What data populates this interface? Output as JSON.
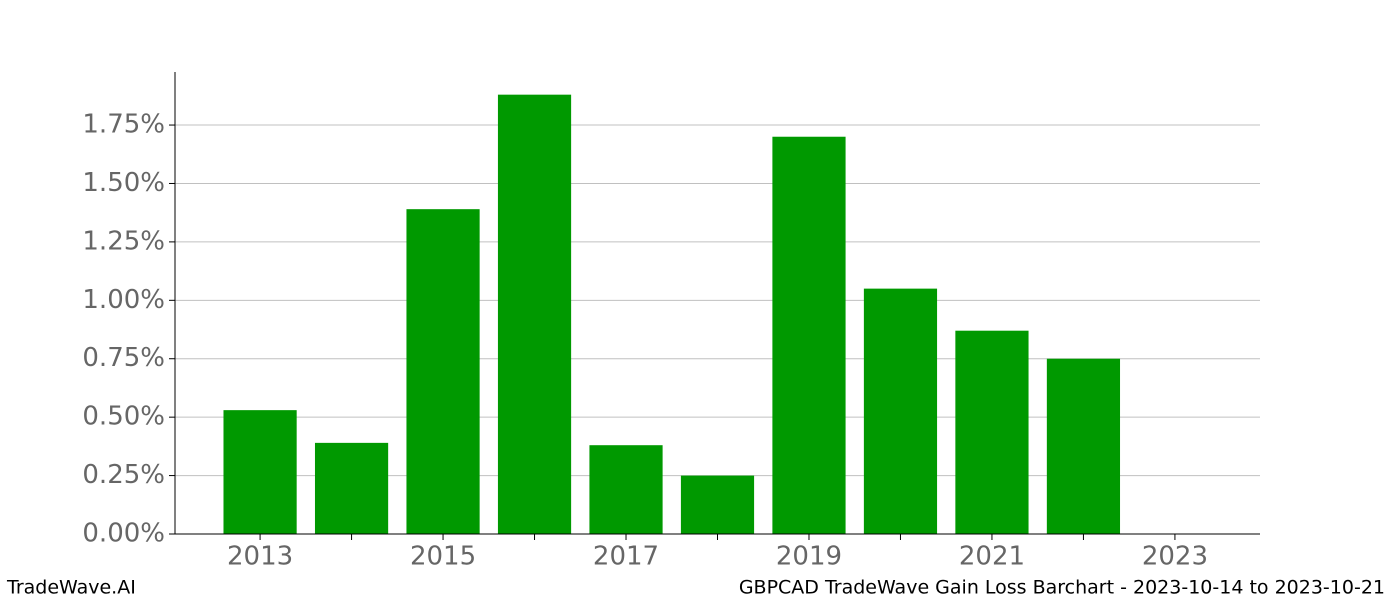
{
  "chart_data": {
    "type": "bar",
    "title": "GBPCAD TradeWave Gain Loss Barchart - 2023-10-14 to 2023-10-21",
    "brand": "TradeWave.AI",
    "x": [
      2013,
      2014,
      2015,
      2016,
      2017,
      2018,
      2019,
      2020,
      2021,
      2022
    ],
    "values": [
      0.53,
      0.39,
      1.39,
      1.88,
      0.38,
      0.25,
      1.7,
      1.05,
      0.87,
      0.75
    ],
    "color": "#009900",
    "xlim": [
      2012.07,
      2023.93
    ],
    "xticks": [
      2013,
      2015,
      2017,
      2019,
      2021,
      2023
    ],
    "xminorticks": [
      2014,
      2016,
      2018,
      2020,
      2022
    ],
    "ylim": [
      0,
      1.977
    ],
    "yticks": [
      {
        "value": 0,
        "label": "0.00%"
      },
      {
        "value": 0.25,
        "label": "0.25%"
      },
      {
        "value": 0.5,
        "label": "0.50%"
      },
      {
        "value": 0.75,
        "label": "0.75%"
      },
      {
        "value": 1.0,
        "label": "1.00%"
      },
      {
        "value": 1.25,
        "label": "1.25%"
      },
      {
        "value": 1.5,
        "label": "1.50%"
      },
      {
        "value": 1.75,
        "label": "1.75%"
      }
    ],
    "grid": true
  }
}
